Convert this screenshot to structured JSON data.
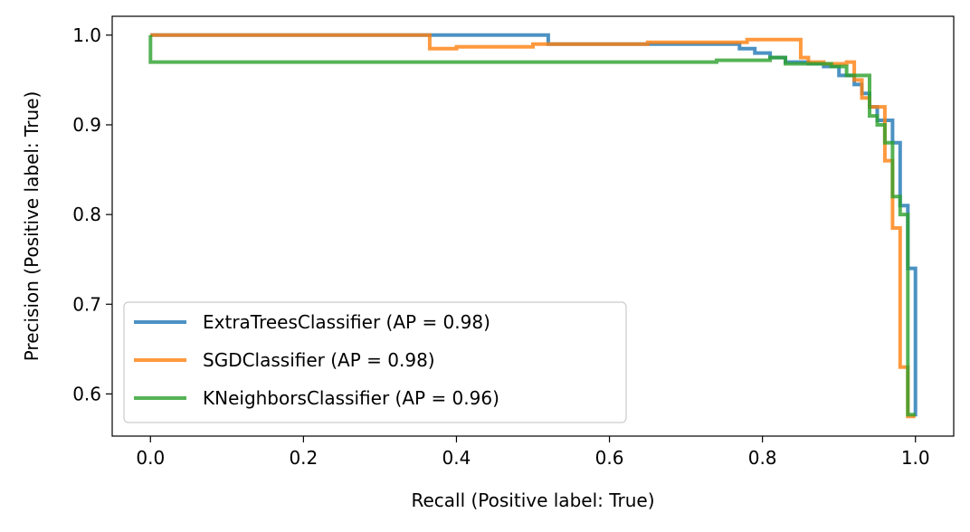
{
  "chart_data": {
    "type": "line",
    "title": "",
    "xlabel": "Recall (Positive label: True)",
    "ylabel": "Precision (Positive label: True)",
    "xlim": [
      -0.05,
      1.05
    ],
    "ylim": [
      0.553,
      1.021
    ],
    "xticks": [
      {
        "value": 0.0,
        "label": "0.0"
      },
      {
        "value": 0.2,
        "label": "0.2"
      },
      {
        "value": 0.4,
        "label": "0.4"
      },
      {
        "value": 0.6,
        "label": "0.6"
      },
      {
        "value": 0.8,
        "label": "0.8"
      },
      {
        "value": 1.0,
        "label": "1.0"
      }
    ],
    "yticks": [
      {
        "value": 0.6,
        "label": "0.6"
      },
      {
        "value": 0.7,
        "label": "0.7"
      },
      {
        "value": 0.8,
        "label": "0.8"
      },
      {
        "value": 0.9,
        "label": "0.9"
      },
      {
        "value": 1.0,
        "label": "1.0"
      }
    ],
    "grid": false,
    "legend_position": "lower-left",
    "series": [
      {
        "name": "ExtraTreesClassifier (AP = 0.98)",
        "color": "#1f77b4",
        "recall": [
          0.0,
          0.52,
          0.52,
          0.77,
          0.77,
          0.79,
          0.79,
          0.81,
          0.81,
          0.83,
          0.83,
          0.86,
          0.86,
          0.88,
          0.88,
          0.9,
          0.9,
          0.92,
          0.92,
          0.93,
          0.93,
          0.94,
          0.94,
          0.95,
          0.95,
          0.97,
          0.97,
          0.98,
          0.98,
          0.99,
          0.99,
          1.0,
          1.0
        ],
        "precision": [
          1.0,
          1.0,
          0.99,
          0.99,
          0.985,
          0.985,
          0.98,
          0.98,
          0.975,
          0.975,
          0.97,
          0.97,
          0.968,
          0.968,
          0.965,
          0.965,
          0.955,
          0.955,
          0.945,
          0.945,
          0.935,
          0.935,
          0.92,
          0.92,
          0.905,
          0.905,
          0.88,
          0.88,
          0.81,
          0.81,
          0.74,
          0.74,
          0.575
        ]
      },
      {
        "name": "SGDClassifier (AP = 0.98)",
        "color": "#ff7f0e",
        "recall": [
          0.0,
          0.365,
          0.365,
          0.4,
          0.4,
          0.5,
          0.5,
          0.65,
          0.65,
          0.78,
          0.78,
          0.85,
          0.85,
          0.86,
          0.86,
          0.88,
          0.88,
          0.91,
          0.91,
          0.92,
          0.92,
          0.93,
          0.93,
          0.94,
          0.94,
          0.96,
          0.96,
          0.97,
          0.97,
          0.98,
          0.98,
          0.99,
          0.99,
          1.0
        ],
        "precision": [
          1.0,
          1.0,
          0.985,
          0.985,
          0.987,
          0.987,
          0.99,
          0.99,
          0.992,
          0.992,
          0.995,
          0.995,
          0.975,
          0.975,
          0.97,
          0.97,
          0.968,
          0.968,
          0.97,
          0.97,
          0.95,
          0.95,
          0.93,
          0.93,
          0.92,
          0.92,
          0.86,
          0.86,
          0.785,
          0.785,
          0.63,
          0.63,
          0.575,
          0.575
        ]
      },
      {
        "name": "KNeighborsClassifier (AP = 0.96)",
        "color": "#2ca02c",
        "recall": [
          0.0,
          0.0,
          0.74,
          0.74,
          0.81,
          0.81,
          0.83,
          0.83,
          0.89,
          0.89,
          0.91,
          0.91,
          0.94,
          0.94,
          0.95,
          0.95,
          0.96,
          0.96,
          0.97,
          0.97,
          0.98,
          0.98,
          0.99,
          0.99,
          1.0
        ],
        "precision": [
          1.0,
          0.97,
          0.97,
          0.972,
          0.972,
          0.975,
          0.975,
          0.968,
          0.968,
          0.965,
          0.965,
          0.955,
          0.955,
          0.91,
          0.91,
          0.9,
          0.9,
          0.88,
          0.88,
          0.82,
          0.82,
          0.8,
          0.8,
          0.577,
          0.577
        ]
      }
    ]
  }
}
